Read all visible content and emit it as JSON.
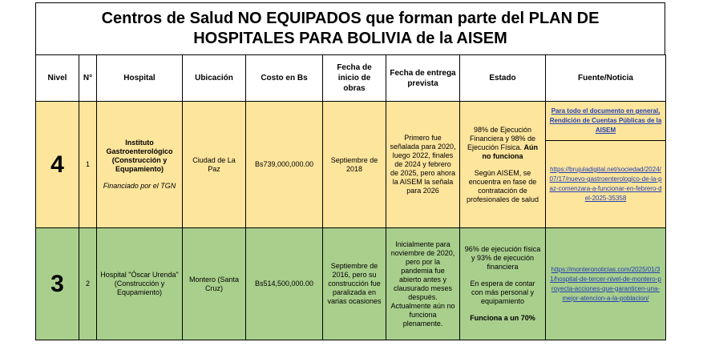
{
  "title": {
    "line1": "Centros de Salud NO EQUIPADOS que forman parte del PLAN DE",
    "line2": "HOSPITALES PARA BOLIVIA de la AISEM"
  },
  "headers": {
    "nivel": "Nivel",
    "numero": "N°",
    "hospital": "Hospital",
    "ubicacion": "Ubicación",
    "costo": "Costo en Bs",
    "fecha_inicio": "Fecha de inicio de obras",
    "fecha_entrega": "Fecha de entrega prevista",
    "estado": "Estado",
    "fuente": "Fuente/Noticia"
  },
  "rows": [
    {
      "color": "#fde59c",
      "nivel": "4",
      "numero": "1",
      "hospital_name": "Instituto Gastroenterológico (Construcción y Equpamiento)",
      "hospital_note": "Financiado por el TGN",
      "ubicacion": "Ciudad de La Paz",
      "costo": "Bs739,000,000.00",
      "fecha_inicio": "Septiembre de 2018",
      "fecha_entrega": "Primero fue señalada para 2020, luego 2022, finales de 2024 y febrero de 2025, pero ahora la AISEM la señala para 2026",
      "estado_a": "98% de Ejecución Financiera y 98% de Ejecución Física.",
      "estado_a_bold": "Aún no funciona",
      "estado_b": "Según AISEM, se encuentra en fase de contratación de profesionales de salud",
      "fuente_top": "Para todo el documento en general, Rendición de Cuentas Públicas de la AISEM",
      "fuente_bottom": "https://brujuladigital.net/sociedad/2024/07/17/nuevo-gastroenterologico-de-la-paz-comenzara-a-funcionar-en-febrero-del-2025-35358"
    },
    {
      "color": "#a9cf8c",
      "nivel": "3",
      "numero": "2",
      "hospital_name": "Hospital \"Óscar Urenda\" (Construcción y Equpamiento)",
      "ubicacion": "Montero (Santa Cruz)",
      "costo": "Bs514,500,000.00",
      "fecha_inicio": "Septiembre de 2016, pero su construcción fue paralizada en varias ocasiones",
      "fecha_entrega": "Inicialmente para noviembre de 2020, pero por la pandemia fue abierto antes y clausurado meses después. Actualmente aún no funciona plenamente.",
      "estado_a": "96% de ejecución física y 93% de ejecución financiera",
      "estado_b": "En espera de contar con más personal y equipamiento",
      "estado_c_bold": "Funciona a un 70%",
      "fuente": "https://monteronoticias.com/2025/01/31/hospital-de-tercer-nivel-de-montero-proyecta-acciones-que-garanticen-una-mejor-atencion-a-la-poblacion/"
    }
  ]
}
